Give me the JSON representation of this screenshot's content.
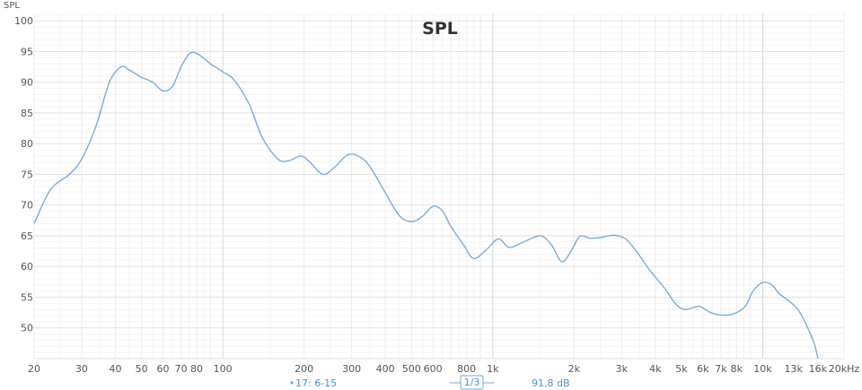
{
  "chart_data": {
    "type": "line",
    "title": "SPL",
    "ylabel": "SPL",
    "xlabel": "",
    "x_scale": "log",
    "xlim": [
      20,
      20000
    ],
    "ylim": [
      45,
      100
    ],
    "x_tick_values": [
      20,
      30,
      40,
      50,
      60,
      70,
      80,
      100,
      200,
      300,
      400,
      500,
      600,
      800,
      1000,
      2000,
      3000,
      4000,
      5000,
      6000,
      7000,
      8000,
      10000,
      13000,
      16000,
      20000
    ],
    "x_tick_labels": [
      "20",
      "30",
      "40",
      "50",
      "60",
      "70",
      "80",
      "100",
      "200",
      "300",
      "400",
      "500",
      "600",
      "800",
      "1k",
      "2k",
      "3k",
      "4k",
      "5k",
      "6k",
      "7k",
      "8k",
      "10k",
      "13k",
      "16k",
      "20kHz"
    ],
    "y_ticks": [
      50,
      55,
      60,
      65,
      70,
      75,
      80,
      85,
      90,
      95,
      100
    ],
    "grid": true,
    "line_color": "#6fa8dc",
    "series": [
      {
        "name": "17: 6-15",
        "x": [
          20,
          23,
          27,
          30,
          34,
          38,
          42,
          45,
          50,
          55,
          60,
          65,
          70,
          75,
          80,
          90,
          100,
          110,
          125,
          140,
          160,
          175,
          195,
          210,
          235,
          260,
          290,
          320,
          350,
          400,
          450,
          500,
          550,
          600,
          650,
          700,
          780,
          850,
          950,
          1050,
          1150,
          1300,
          1500,
          1650,
          1800,
          1950,
          2100,
          2300,
          2500,
          2800,
          3100,
          3400,
          3800,
          4300,
          4800,
          5200,
          5800,
          6400,
          7000,
          7800,
          8600,
          9200,
          10000,
          10800,
          11500,
          12500,
          13500,
          14500,
          15500,
          16000
        ],
        "values": [
          67,
          72.5,
          75,
          77.5,
          83,
          90,
          92.5,
          92,
          90.8,
          90,
          88.6,
          89.3,
          92.5,
          94.6,
          94.7,
          93,
          91.7,
          90.4,
          86.5,
          81,
          77.5,
          77.2,
          78,
          77,
          75,
          76.2,
          78.2,
          77.9,
          76.3,
          72,
          68.3,
          67.3,
          68.2,
          69.8,
          69.1,
          66.5,
          63.5,
          61.3,
          62.8,
          64.5,
          63.1,
          64,
          65,
          63.5,
          60.8,
          62.5,
          64.9,
          64.6,
          64.7,
          65.1,
          64.5,
          62.5,
          59.5,
          56.6,
          53.7,
          53,
          53.5,
          52.5,
          52.1,
          52.3,
          53.5,
          56,
          57.4,
          57,
          55.6,
          54.4,
          53,
          50.5,
          47.5,
          45
        ]
      }
    ],
    "legend": {
      "position": "bottom-center",
      "series_label": "17: 6-15",
      "smoothing_label": "1/3",
      "value_readout": "91,8 dB"
    }
  }
}
